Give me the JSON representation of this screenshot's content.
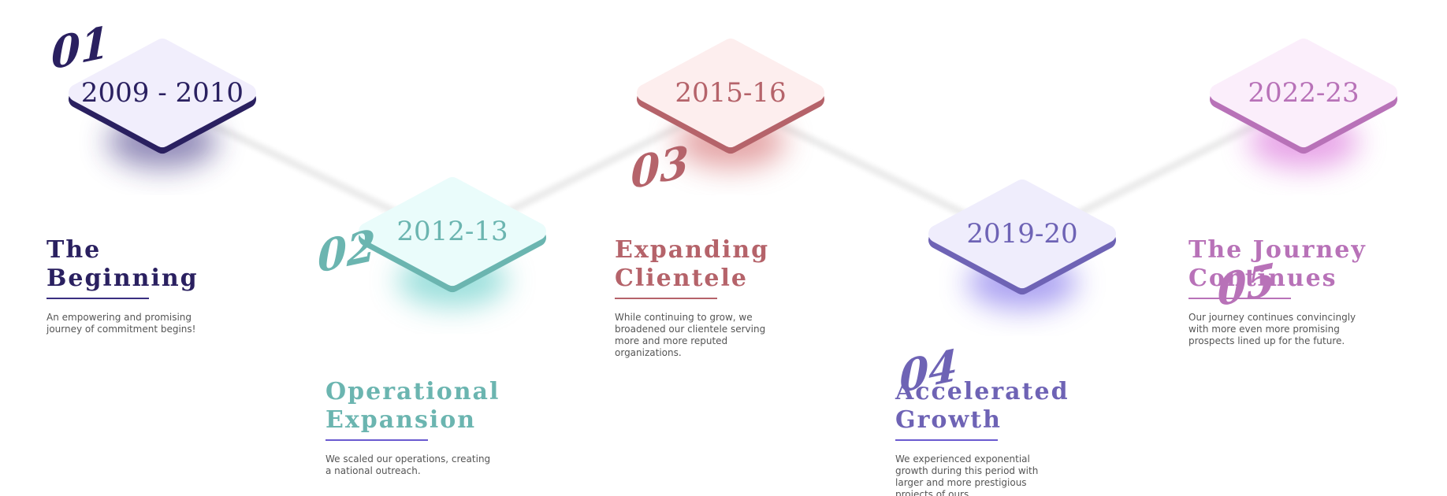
{
  "milestones": [
    {
      "number": "01",
      "years": "2009 - 2010",
      "title": "The Beginning",
      "description": "An empowering and promising journey of commitment begins!"
    },
    {
      "number": "02",
      "years": "2012-13",
      "title": "Operational Expansion",
      "description": "We scaled our operations, creating a national outreach."
    },
    {
      "number": "03",
      "years": "2015-16",
      "title": "Expanding Clientele",
      "description": "While continuing to grow, we broadened our clientele serving more and more reputed organizations."
    },
    {
      "number": "04",
      "years": "2019-20",
      "title": "Accelerated Growth",
      "description": "We experienced exponential growth during this period with larger and more prestigious projects of ours"
    },
    {
      "number": "05",
      "years": "2022-23",
      "title": "The Journey Continues",
      "description": "Our journey continues convincingly with more even more promising prospects lined up for the future."
    }
  ]
}
